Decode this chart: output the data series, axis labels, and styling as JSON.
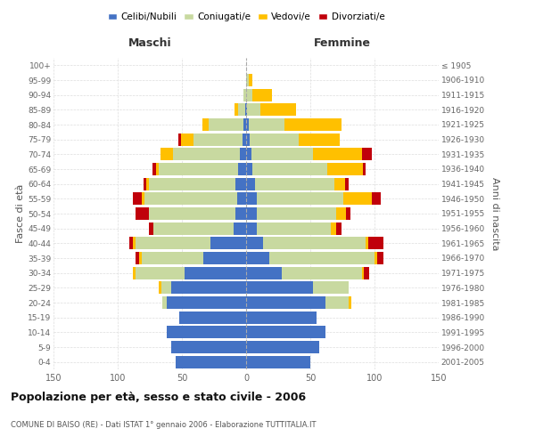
{
  "age_groups": [
    "0-4",
    "5-9",
    "10-14",
    "15-19",
    "20-24",
    "25-29",
    "30-34",
    "35-39",
    "40-44",
    "45-49",
    "50-54",
    "55-59",
    "60-64",
    "65-69",
    "70-74",
    "75-79",
    "80-84",
    "85-89",
    "90-94",
    "95-99",
    "100+"
  ],
  "birth_years": [
    "2001-2005",
    "1996-2000",
    "1991-1995",
    "1986-1990",
    "1981-1985",
    "1976-1980",
    "1971-1975",
    "1966-1970",
    "1961-1965",
    "1956-1960",
    "1951-1955",
    "1946-1950",
    "1941-1945",
    "1936-1940",
    "1931-1935",
    "1926-1930",
    "1921-1925",
    "1916-1920",
    "1911-1915",
    "1906-1910",
    "≤ 1905"
  ],
  "male": {
    "celibi": [
      55,
      58,
      62,
      52,
      62,
      58,
      48,
      33,
      28,
      10,
      8,
      7,
      8,
      6,
      5,
      3,
      2,
      1,
      0,
      0,
      0
    ],
    "coniugati": [
      0,
      0,
      0,
      0,
      3,
      8,
      38,
      48,
      58,
      62,
      68,
      72,
      68,
      62,
      52,
      38,
      27,
      5,
      2,
      0,
      0
    ],
    "vedovi": [
      0,
      0,
      0,
      0,
      0,
      2,
      2,
      2,
      2,
      0,
      0,
      2,
      2,
      2,
      10,
      10,
      5,
      3,
      0,
      0,
      0
    ],
    "divorziati": [
      0,
      0,
      0,
      0,
      0,
      0,
      0,
      3,
      3,
      4,
      10,
      7,
      2,
      3,
      0,
      2,
      0,
      0,
      0,
      0,
      0
    ]
  },
  "female": {
    "nubili": [
      50,
      57,
      62,
      55,
      62,
      52,
      28,
      18,
      13,
      8,
      8,
      8,
      7,
      5,
      4,
      3,
      2,
      1,
      0,
      0,
      0
    ],
    "coniugate": [
      0,
      0,
      0,
      0,
      18,
      28,
      62,
      82,
      80,
      58,
      62,
      68,
      62,
      58,
      48,
      38,
      28,
      10,
      5,
      2,
      0
    ],
    "vedove": [
      0,
      0,
      0,
      0,
      2,
      0,
      2,
      2,
      2,
      4,
      8,
      22,
      8,
      28,
      38,
      32,
      44,
      28,
      15,
      3,
      0
    ],
    "divorziate": [
      0,
      0,
      0,
      0,
      0,
      0,
      4,
      5,
      12,
      4,
      3,
      7,
      3,
      2,
      8,
      0,
      0,
      0,
      0,
      0,
      0
    ]
  },
  "colors": {
    "celibi": "#4472c4",
    "coniugati": "#c8d9a0",
    "vedovi": "#ffc000",
    "divorziati": "#c0000b"
  },
  "title": "Popolazione per età, sesso e stato civile - 2006",
  "subtitle": "COMUNE DI BAISO (RE) - Dati ISTAT 1° gennaio 2006 - Elaborazione TUTTITALIA.IT",
  "xlabel_left": "Maschi",
  "xlabel_right": "Femmine",
  "ylabel_left": "Fasce di età",
  "ylabel_right": "Anni di nascita",
  "xlim": 150,
  "legend_labels": [
    "Celibi/Nubili",
    "Coniugati/e",
    "Vedovi/e",
    "Divorziati/e"
  ],
  "bg_color": "#ffffff",
  "grid_color": "#cccccc"
}
